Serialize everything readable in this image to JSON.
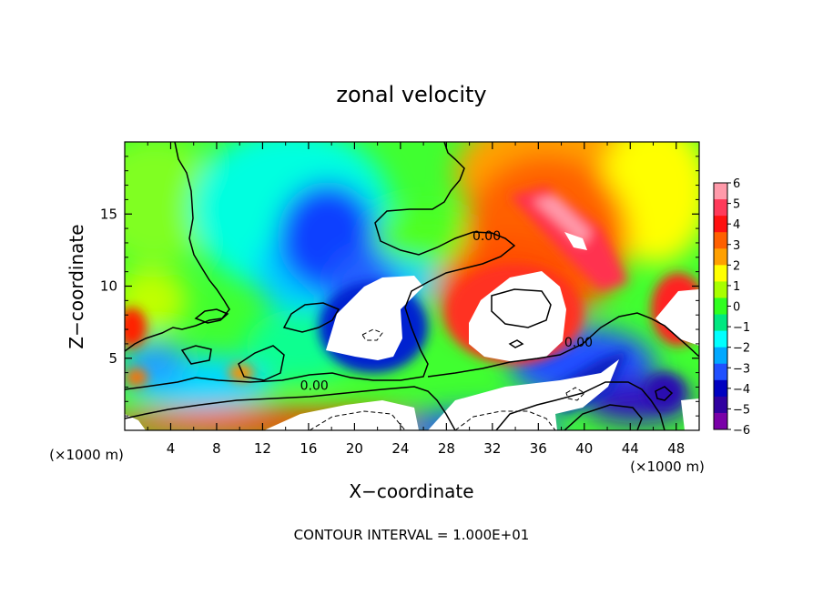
{
  "chart_data": {
    "type": "heatmap",
    "title": "zonal velocity",
    "xlabel": "X−coordinate",
    "ylabel": "Z−coordinate",
    "x_unit_left": "(×1000 m)",
    "x_unit_right": "(×1000 m)",
    "footer": "CONTOUR INTERVAL = 1.000E+01",
    "xlim": [
      0,
      50
    ],
    "ylim": [
      0,
      20
    ],
    "x_ticks": [
      4,
      8,
      12,
      16,
      20,
      24,
      28,
      32,
      36,
      40,
      44,
      48
    ],
    "y_ticks": [
      5,
      10,
      15
    ],
    "colorbar": {
      "ticks": [
        6,
        5,
        4,
        3,
        2,
        1,
        0,
        -1,
        -2,
        -3,
        -4,
        -5,
        -6
      ],
      "colors": [
        "#ff9aaa",
        "#ff3a5a",
        "#ff1010",
        "#ff6000",
        "#ffa000",
        "#ffff00",
        "#a8ff00",
        "#30ff20",
        "#00e880",
        "#00ffff",
        "#00a8ff",
        "#2050ff",
        "#0000c0",
        "#3000a0",
        "#7a00a8"
      ]
    },
    "contour_labels": [
      {
        "text": "0.00",
        "x": 31.5,
        "y": 13.2
      },
      {
        "text": "0.00",
        "x": 39.5,
        "y": 5.8
      },
      {
        "text": "0.00",
        "x": 16.5,
        "y": 2.8
      }
    ],
    "white_regions_note": "values beyond ±6 shown white"
  }
}
